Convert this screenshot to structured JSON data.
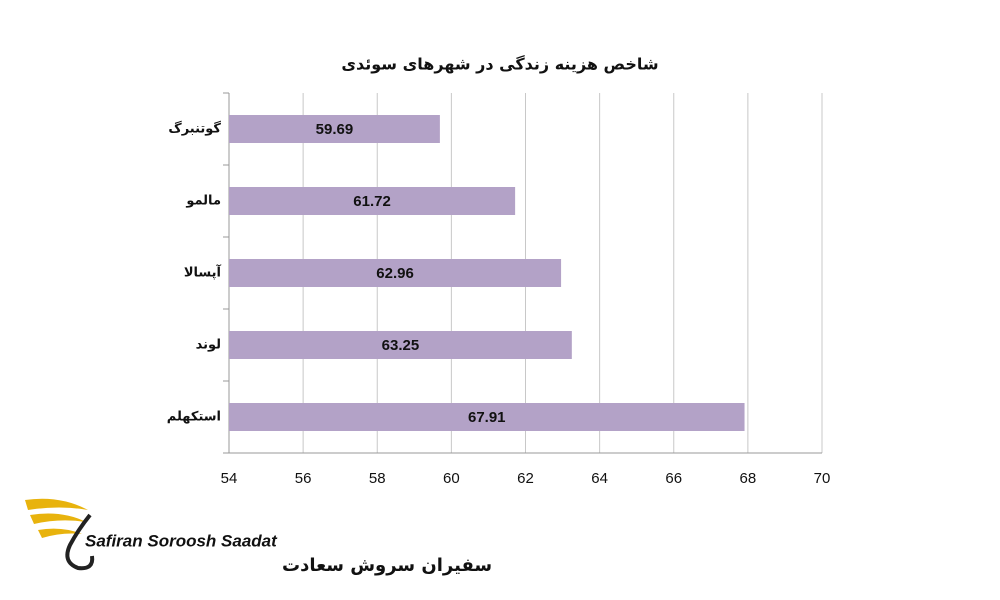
{
  "chart_data": {
    "type": "barh",
    "title": "شاخص هزینه زندگی در شهرهای سوئدی",
    "categories": [
      "گوتنبرگ",
      "مالمو",
      "آپسالا",
      "لوند",
      "استکهلم"
    ],
    "values": [
      59.69,
      61.72,
      62.96,
      63.25,
      67.91
    ],
    "color": "#b3a2c7",
    "xlim": [
      54,
      70
    ],
    "xticks": [
      54,
      56,
      58,
      60,
      62,
      64,
      66,
      68,
      70
    ],
    "grid": true
  },
  "brand": {
    "name": "Safiran Soroosh Saadat",
    "name_fa": "سفیران سروش سعادت"
  }
}
